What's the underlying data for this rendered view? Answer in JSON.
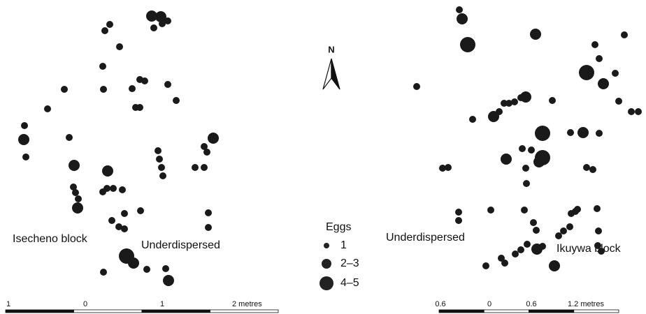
{
  "north": "N",
  "left_panel": {
    "block": "Isecheno block",
    "pattern": "Underdispersed",
    "scale": [
      "1",
      "0",
      "1",
      "2 metres"
    ]
  },
  "right_panel": {
    "block": "Ikuywa block",
    "pattern": "Underdispersed",
    "scale": [
      "0.6",
      "0",
      "0.6",
      "1.2 metres"
    ]
  },
  "legend": {
    "title": "Eggs",
    "items": [
      "1",
      "2–3",
      "4–5"
    ]
  }
}
